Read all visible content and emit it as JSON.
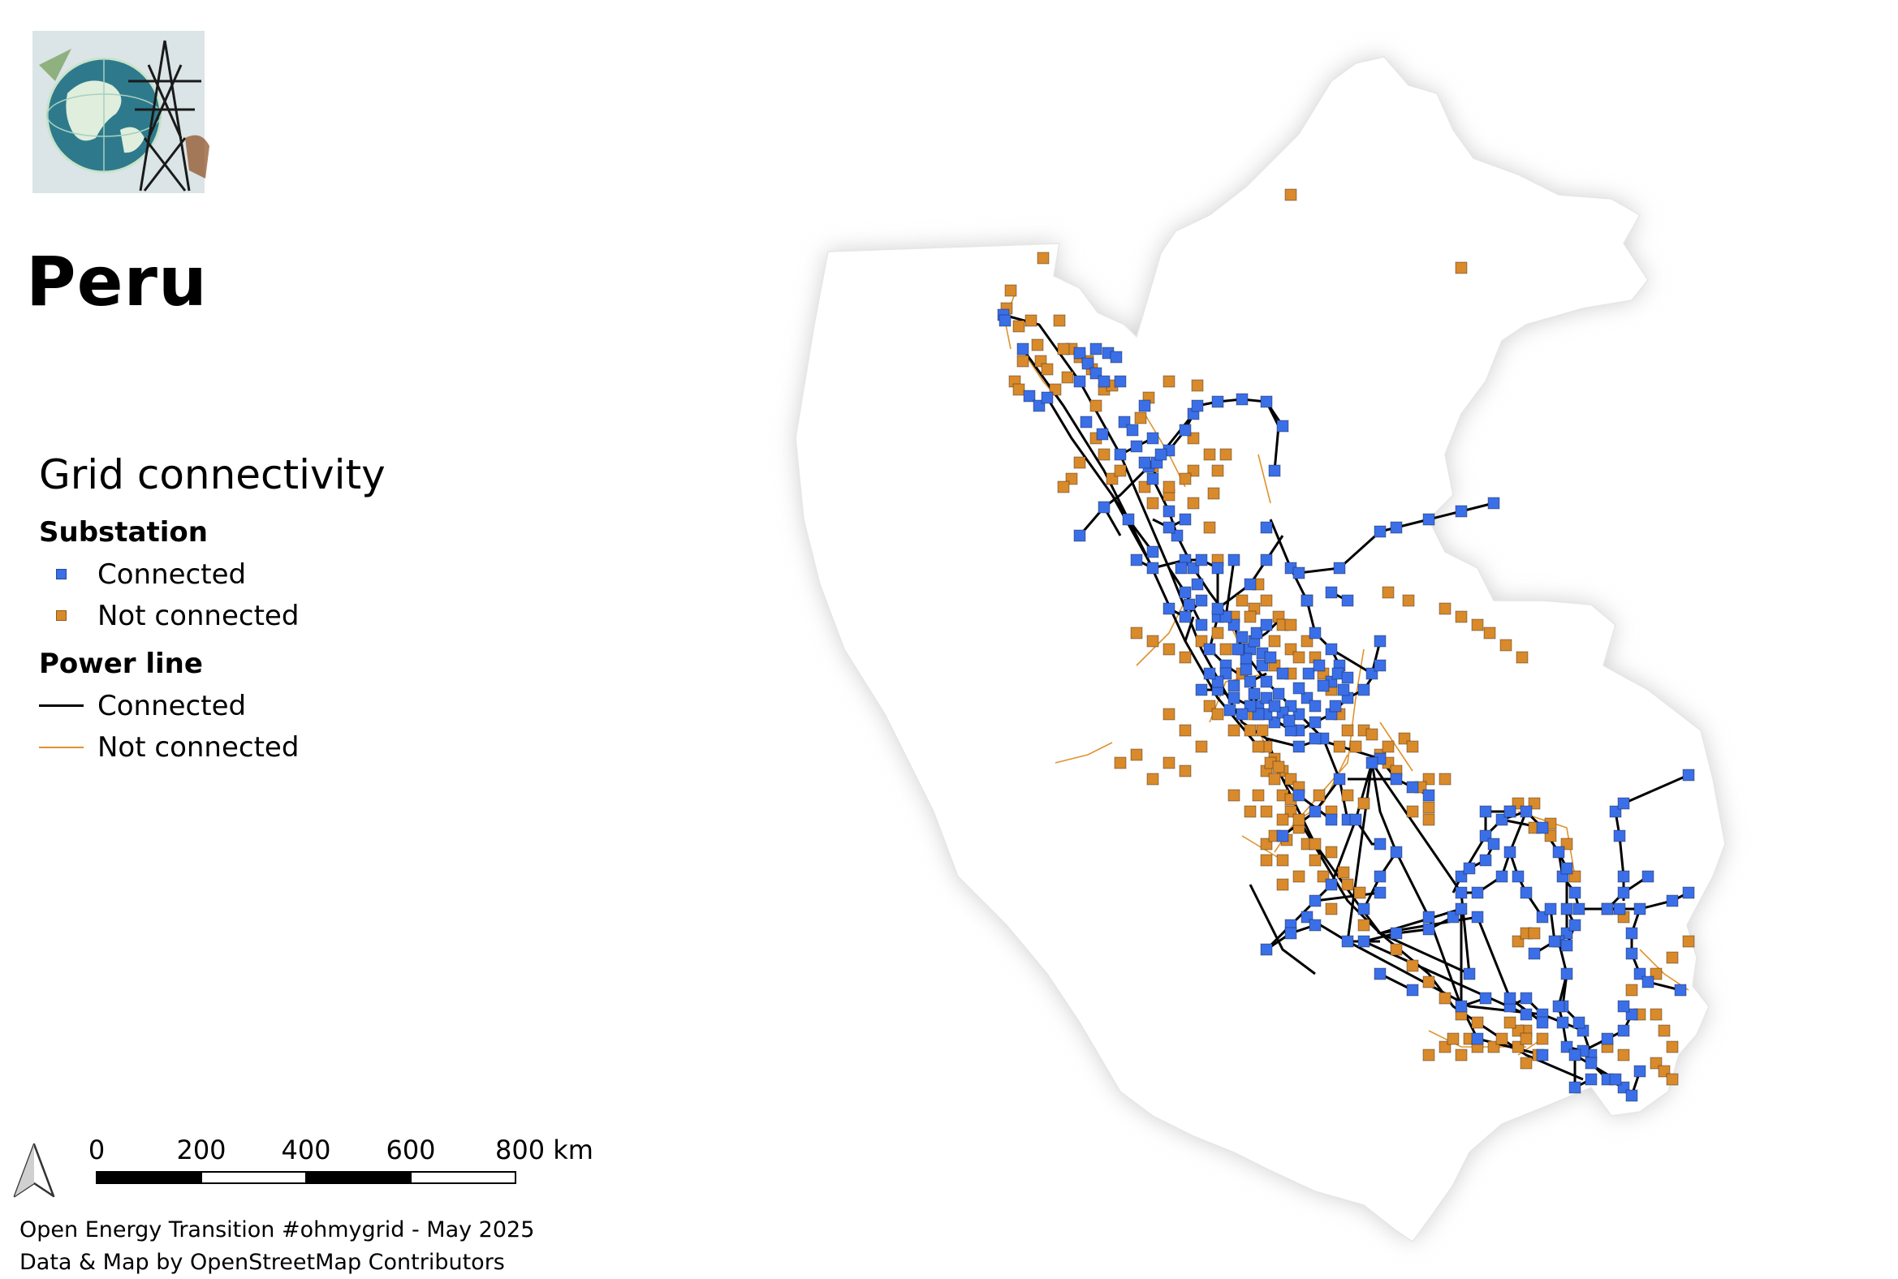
{
  "title": "Peru",
  "legend": {
    "title": "Grid connectivity",
    "substation": {
      "title": "Substation",
      "items": [
        {
          "label": "Connected",
          "color": "#3b6fe8"
        },
        {
          "label": "Not connected",
          "color": "#d98a2b"
        }
      ]
    },
    "power_line": {
      "title": "Power line",
      "items": [
        {
          "label": "Connected",
          "color": "#000000"
        },
        {
          "label": "Not connected",
          "color": "#e0922e"
        }
      ]
    }
  },
  "scalebar": {
    "ticks": [
      "0",
      "200",
      "400",
      "600",
      "800 km"
    ]
  },
  "credits": {
    "line1": "Open Energy Transition #ohmygrid - May 2025",
    "line2": "Data & Map by OpenStreetMap Contributors"
  },
  "icons": {
    "logo": "globe-transmission-tower-logo",
    "north": "north-arrow-icon"
  },
  "colors": {
    "land": "#ffffff",
    "land_shadow": "#d8d8d8",
    "connected_substation": "#3b6fe8",
    "unconnected_substation": "#d98a2b",
    "connected_line": "#000000",
    "unconnected_line": "#e0922e"
  }
}
